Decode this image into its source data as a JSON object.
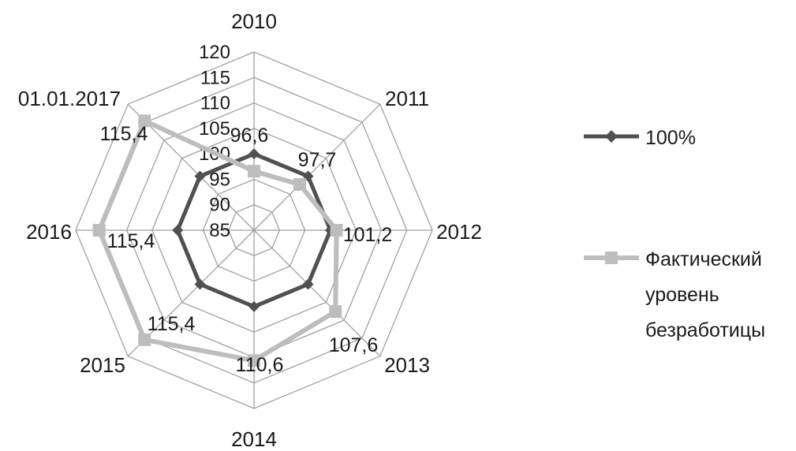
{
  "chart_data": {
    "type": "radar",
    "categories": [
      "2010",
      "2011",
      "2012",
      "2013",
      "2014",
      "2015",
      "2016",
      "01.01.2017"
    ],
    "rlim": [
      85,
      120
    ],
    "ticks": [
      "85",
      "90",
      "95",
      "100",
      "105",
      "110",
      "115",
      "120"
    ],
    "grid": true,
    "legend_position": "right",
    "series": [
      {
        "name": "100%",
        "values": [
          100,
          100,
          100,
          100,
          100,
          100,
          100,
          100
        ],
        "color": "#505050",
        "marker": "diamond"
      },
      {
        "name": "Фактический уровень безработицы",
        "legend_lines": [
          "Фактический",
          "уровень",
          "безработицы"
        ],
        "values": [
          96.6,
          97.7,
          101.2,
          107.6,
          110.6,
          115.4,
          115.4,
          115.4
        ],
        "color": "#bdbdbd",
        "marker": "square"
      }
    ],
    "data_labels": [
      "96,6",
      "97,7",
      "101,2",
      "107,6",
      "110,6",
      "115,4",
      "115,4",
      "115,4"
    ]
  }
}
